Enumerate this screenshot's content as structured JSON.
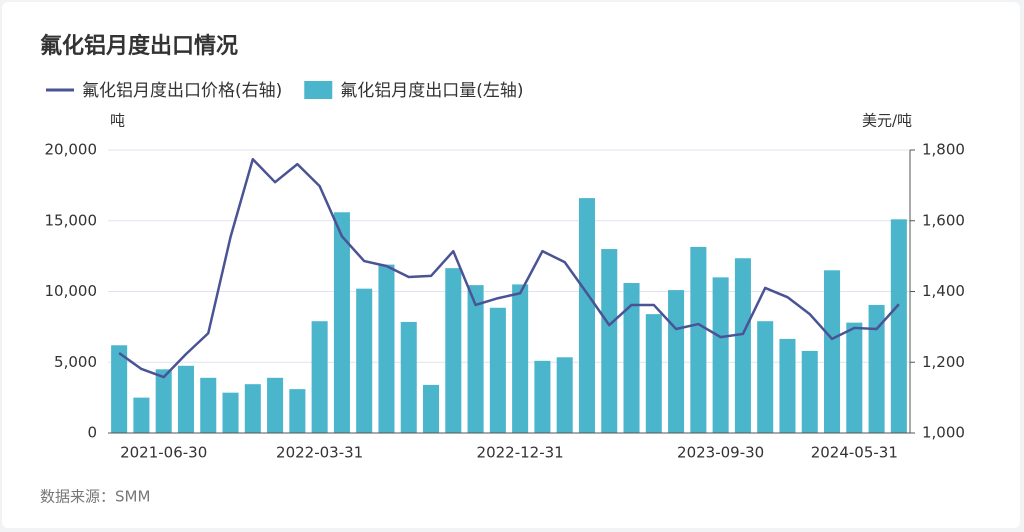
{
  "chart_data": {
    "type": "bar_line",
    "title": "氟化铝月度出口情况",
    "y_unit": "吨",
    "y2_unit": "美元/吨",
    "source": "数据来源：SMM",
    "categories": [
      null,
      null,
      "2021-06-30",
      null,
      null,
      null,
      null,
      null,
      null,
      "2022-03-31",
      null,
      null,
      null,
      null,
      null,
      null,
      null,
      null,
      "2022-12-31",
      null,
      null,
      null,
      null,
      null,
      null,
      null,
      null,
      "2023-09-30",
      null,
      null,
      null,
      null,
      null,
      "2024-05-31",
      null,
      null
    ],
    "series": [
      {
        "name": "氟化铝月度出口价格(右轴)",
        "type": "line",
        "axis": "y2",
        "color": "#4a5394",
        "values": [
          1226,
          1181,
          1158,
          1223,
          1282,
          1554,
          1774,
          1709,
          1760,
          1698,
          1556,
          1486,
          1472,
          1441,
          1444,
          1514,
          1362,
          1381,
          1395,
          1514,
          1483,
          1395,
          1305,
          1362,
          1362,
          1294,
          1308,
          1271,
          1280,
          1410,
          1384,
          1336,
          1266,
          1297,
          1294,
          1364
        ]
      },
      {
        "name": "氟化铝月度出口量(左轴)",
        "type": "bar",
        "color": "#4bb5cc",
        "values": [
          6200,
          2500,
          4500,
          4750,
          3900,
          2850,
          3450,
          3900,
          3100,
          7900,
          15600,
          10200,
          11900,
          7850,
          3400,
          11650,
          10450,
          8850,
          10500,
          5100,
          5350,
          16600,
          13000,
          10600,
          8400,
          10100,
          13150,
          11000,
          12350,
          7900,
          6650,
          5800,
          11500,
          7800,
          9050,
          15100
        ]
      }
    ],
    "ylim": [
      0,
      20000
    ],
    "yticks": [
      0,
      {
        "value": 5000,
        "label": "5,000"
      },
      {
        "value": 10000,
        "label": "10,000"
      },
      {
        "value": 15000,
        "label": "15,000"
      },
      {
        "value": 20000,
        "label": "20,000"
      }
    ],
    "y2lim": [
      1000,
      1800
    ],
    "y2ticks": [
      {
        "value": 1000,
        "label": "1,000"
      },
      {
        "value": 1200,
        "label": "1,200"
      },
      {
        "value": 1400,
        "label": "1,400"
      },
      {
        "value": 1600,
        "label": "1,600"
      },
      {
        "value": 1800,
        "label": "1,800"
      }
    ],
    "grid": true
  }
}
